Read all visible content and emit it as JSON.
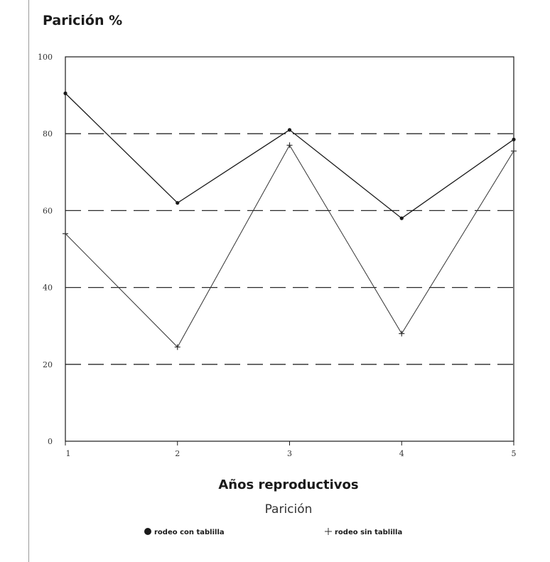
{
  "chart_data": {
    "type": "line",
    "title": "Parición %",
    "xlabel": "Años reproductivos",
    "subtitle": "Parición",
    "ylabel": "",
    "x": [
      1,
      2,
      3,
      4,
      5
    ],
    "x_tick_labels": [
      "1",
      "2",
      "3",
      "4",
      "5"
    ],
    "y_tick_labels": [
      "100",
      "80",
      "60",
      "40",
      "20",
      "0"
    ],
    "y_ticks": [
      100,
      80,
      60,
      40,
      20,
      0
    ],
    "ylim": [
      0,
      100
    ],
    "grid": "horizontal-dashed",
    "legend_position": "bottom",
    "series": [
      {
        "name": "rodeo con tablilla",
        "marker": "dot",
        "values": [
          90.5,
          62,
          81,
          58,
          78.5
        ],
        "color": "#1a1a1a"
      },
      {
        "name": "rodeo sin tablilla",
        "marker": "plus",
        "values": [
          54,
          24.5,
          77,
          28,
          75.5
        ],
        "color": "#333333"
      }
    ]
  }
}
